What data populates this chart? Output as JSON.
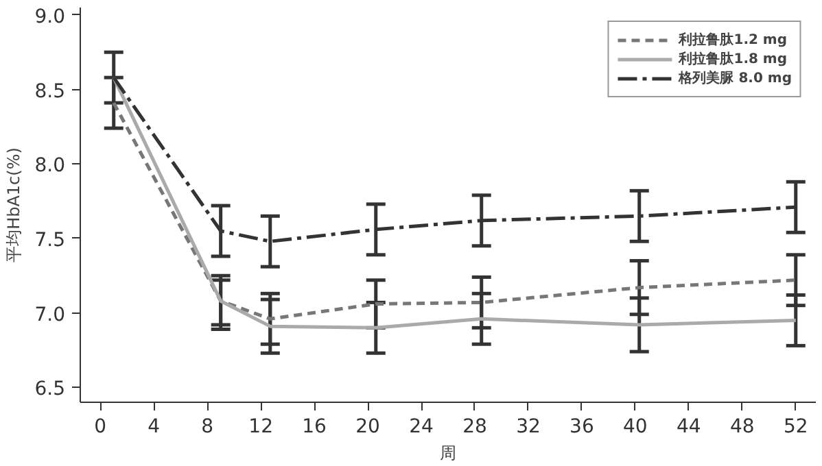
{
  "chart_data": {
    "type": "line",
    "xlabel": "周",
    "ylabel": "平均HbA1c(%)",
    "x": [
      1,
      9,
      12.7,
      20.6,
      28.5,
      40.3,
      52
    ],
    "xlim": [
      -1.5,
      53.5
    ],
    "xticks": [
      0,
      4,
      8,
      12,
      16,
      20,
      24,
      28,
      32,
      36,
      40,
      44,
      48,
      52
    ],
    "ylim": [
      6.4,
      9.05
    ],
    "yticks": [
      6.5,
      {
        "value": 7,
        "label": "7.0"
      },
      7.5,
      {
        "value": 8,
        "label": "8.0"
      },
      8.5,
      {
        "value": 9,
        "label": "9.0"
      }
    ],
    "grid": false,
    "legend": "top right",
    "marker": "none",
    "series": [
      {
        "name": "利拉鲁肽1.2 mg",
        "color": "#777777",
        "line_style": "dashed",
        "values": [
          8.41,
          7.08,
          6.96,
          7.06,
          7.07,
          7.17,
          7.22
        ],
        "errors": [
          0.17,
          [
            6.89,
            7.25
          ],
          0.17,
          0.16,
          0.17,
          0.18,
          0.17
        ]
      },
      {
        "name": "利拉鲁肽1.8 mg",
        "color": "#aaaaaa",
        "line_style": "solid",
        "values": [
          8.58,
          7.08,
          6.91,
          6.9,
          6.96,
          6.92,
          6.95
        ],
        "errors": [
          null,
          [
            6.92,
            7.22
          ],
          0.18,
          0.17,
          0.17,
          0.18,
          0.17
        ]
      },
      {
        "name": "格列美脲 8.0 mg",
        "color": "#333333",
        "line_style": "dashdot",
        "values": [
          8.58,
          7.55,
          7.48,
          7.56,
          7.62,
          7.65,
          7.71
        ],
        "errors": [
          0.17,
          0.17,
          0.17,
          0.17,
          0.17,
          0.17,
          0.17
        ]
      }
    ]
  }
}
